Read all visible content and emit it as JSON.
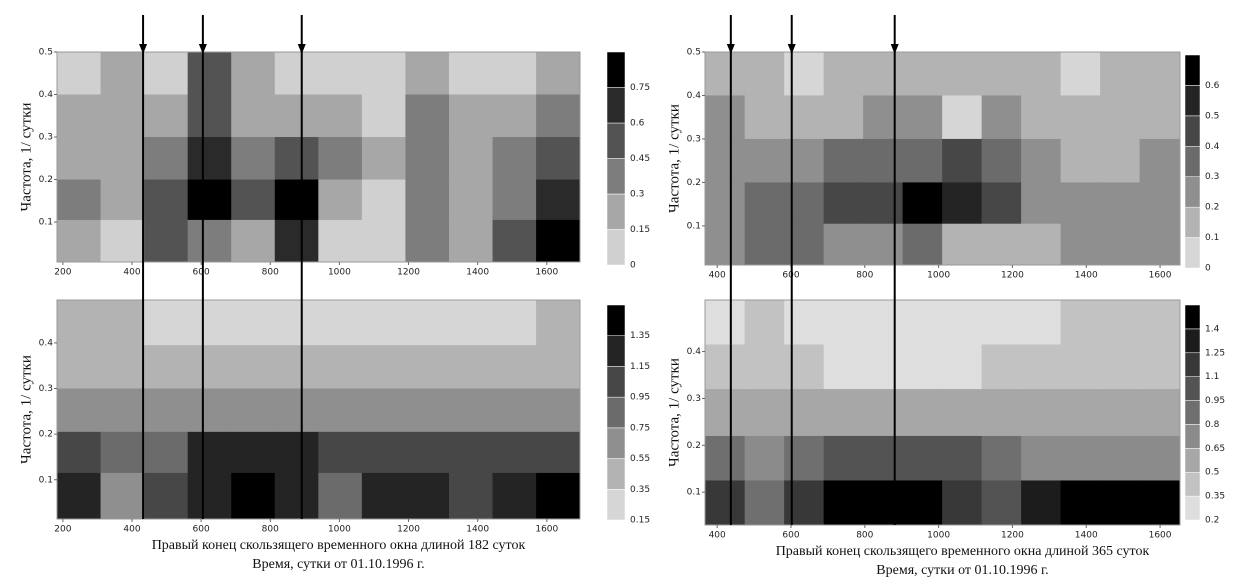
{
  "chart_data": [
    {
      "type": "heatmap",
      "ylabel": "Частота, 1/ сутки",
      "xlim": [
        183,
        1696
      ],
      "ylim": [
        0.006,
        0.5
      ],
      "xticks": [
        200,
        400,
        600,
        800,
        1000,
        1200,
        1400,
        1600
      ],
      "yticks": [
        0.1,
        0.2,
        0.3,
        0.4,
        0.5
      ],
      "levels": [
        0,
        0.15,
        0.3,
        0.45,
        0.6,
        0.75
      ],
      "markers": [
        432,
        605,
        891
      ],
      "x": [
        246,
        372,
        498,
        624,
        750,
        876,
        1002,
        1128,
        1254,
        1380,
        1506,
        1632
      ],
      "y": [
        0.45,
        0.35,
        0.25,
        0.15,
        0.06
      ],
      "z": [
        [
          0.1,
          0.15,
          0.1,
          0.5,
          0.2,
          0.1,
          0.05,
          0.05,
          0.2,
          0.1,
          0.1,
          0.15
        ],
        [
          0.15,
          0.2,
          0.15,
          0.45,
          0.25,
          0.2,
          0.15,
          0.1,
          0.3,
          0.2,
          0.2,
          0.3
        ],
        [
          0.25,
          0.2,
          0.3,
          0.6,
          0.3,
          0.45,
          0.3,
          0.2,
          0.35,
          0.15,
          0.3,
          0.55
        ],
        [
          0.3,
          0.2,
          0.45,
          0.75,
          0.55,
          0.8,
          0.2,
          0.1,
          0.4,
          0.15,
          0.3,
          0.7
        ],
        [
          0.2,
          0.1,
          0.5,
          0.4,
          0.25,
          0.6,
          0.1,
          0.05,
          0.35,
          0.2,
          0.5,
          0.8
        ]
      ]
    },
    {
      "type": "heatmap",
      "ylabel": "Частота, 1/ сутки",
      "xlabel": [
        "Правый конец скользящего временного окна длиной 182 суток",
        "Время, сутки от 01.10.1996 г."
      ],
      "xlim": [
        183,
        1696
      ],
      "ylim": [
        0.014,
        0.494
      ],
      "xticks": [
        200,
        400,
        600,
        800,
        1000,
        1200,
        1400,
        1600
      ],
      "yticks": [
        0.1,
        0.2,
        0.3,
        0.4
      ],
      "levels": [
        0.15,
        0.35,
        0.55,
        0.75,
        0.95,
        1.15,
        1.35
      ],
      "x": [
        246,
        372,
        498,
        624,
        750,
        876,
        1002,
        1128,
        1254,
        1380,
        1506,
        1632
      ],
      "y": [
        0.44,
        0.35,
        0.25,
        0.16,
        0.07
      ],
      "z": [
        [
          0.35,
          0.35,
          0.3,
          0.25,
          0.3,
          0.3,
          0.3,
          0.3,
          0.3,
          0.3,
          0.3,
          0.35
        ],
        [
          0.45,
          0.4,
          0.4,
          0.35,
          0.4,
          0.4,
          0.4,
          0.4,
          0.4,
          0.4,
          0.4,
          0.45
        ],
        [
          0.6,
          0.55,
          0.55,
          0.6,
          0.65,
          0.7,
          0.7,
          0.65,
          0.6,
          0.6,
          0.6,
          0.65
        ],
        [
          1.0,
          0.8,
          0.9,
          1.2,
          1.2,
          1.3,
          1.1,
          0.95,
          1.0,
          1.0,
          0.95,
          1.0
        ],
        [
          1.3,
          0.6,
          1.1,
          1.3,
          1.4,
          1.3,
          0.9,
          1.2,
          1.3,
          1.1,
          1.3,
          1.4
        ]
      ]
    },
    {
      "type": "heatmap",
      "ylabel": "Частота, 1/ сутки",
      "xlim": [
        367,
        1654
      ],
      "ylim": [
        0.01,
        0.5
      ],
      "xticks": [
        400,
        600,
        800,
        1000,
        1200,
        1400,
        1600
      ],
      "yticks": [
        0.1,
        0.2,
        0.3,
        0.4,
        0.5
      ],
      "levels": [
        0,
        0.1,
        0.2,
        0.3,
        0.4,
        0.5,
        0.6
      ],
      "markers": [
        437,
        602,
        881
      ],
      "x": [
        421,
        528,
        635,
        742,
        849,
        956,
        1063,
        1170,
        1277,
        1384,
        1491,
        1598
      ],
      "y": [
        0.45,
        0.35,
        0.25,
        0.15,
        0.06
      ],
      "z": [
        [
          0.15,
          0.1,
          0.05,
          0.1,
          0.15,
          0.15,
          0.1,
          0.15,
          0.1,
          0.05,
          0.1,
          0.1
        ],
        [
          0.2,
          0.15,
          0.1,
          0.15,
          0.2,
          0.2,
          0.05,
          0.2,
          0.15,
          0.1,
          0.1,
          0.15
        ],
        [
          0.2,
          0.2,
          0.25,
          0.3,
          0.3,
          0.35,
          0.4,
          0.3,
          0.2,
          0.15,
          0.15,
          0.2
        ],
        [
          0.25,
          0.3,
          0.35,
          0.4,
          0.45,
          0.6,
          0.5,
          0.4,
          0.25,
          0.2,
          0.2,
          0.2
        ],
        [
          0.2,
          0.35,
          0.3,
          0.25,
          0.25,
          0.3,
          0.15,
          0.1,
          0.15,
          0.2,
          0.2,
          0.2
        ]
      ]
    },
    {
      "type": "heatmap",
      "ylabel": "Частота, 1/ сутки",
      "xlabel": [
        "Правый конец скользящего временного окна длиной 365 суток",
        "Время, сутки от 01.10.1996 г."
      ],
      "xlim": [
        367,
        1654
      ],
      "ylim": [
        0.03,
        0.51
      ],
      "xticks": [
        400,
        600,
        800,
        1000,
        1200,
        1400,
        1600
      ],
      "yticks": [
        0.1,
        0.2,
        0.3,
        0.4
      ],
      "levels": [
        0.2,
        0.35,
        0.5,
        0.65,
        0.8,
        0.95,
        1.1,
        1.25,
        1.4
      ],
      "x": [
        421,
        528,
        635,
        742,
        849,
        956,
        1063,
        1170,
        1277,
        1384,
        1491,
        1598
      ],
      "y": [
        0.46,
        0.37,
        0.27,
        0.17,
        0.08
      ],
      "z": [
        [
          0.3,
          0.35,
          0.3,
          0.2,
          0.2,
          0.2,
          0.2,
          0.25,
          0.3,
          0.35,
          0.4,
          0.4
        ],
        [
          0.4,
          0.4,
          0.35,
          0.3,
          0.3,
          0.3,
          0.3,
          0.35,
          0.35,
          0.4,
          0.4,
          0.45
        ],
        [
          0.5,
          0.5,
          0.5,
          0.5,
          0.5,
          0.5,
          0.5,
          0.5,
          0.5,
          0.5,
          0.5,
          0.5
        ],
        [
          0.8,
          0.7,
          0.8,
          0.95,
          1.0,
          1.0,
          0.95,
          0.8,
          0.7,
          0.7,
          0.7,
          0.7
        ],
        [
          1.1,
          0.8,
          1.2,
          1.4,
          1.5,
          1.45,
          1.2,
          1.0,
          1.3,
          1.4,
          1.45,
          1.5
        ]
      ]
    }
  ]
}
